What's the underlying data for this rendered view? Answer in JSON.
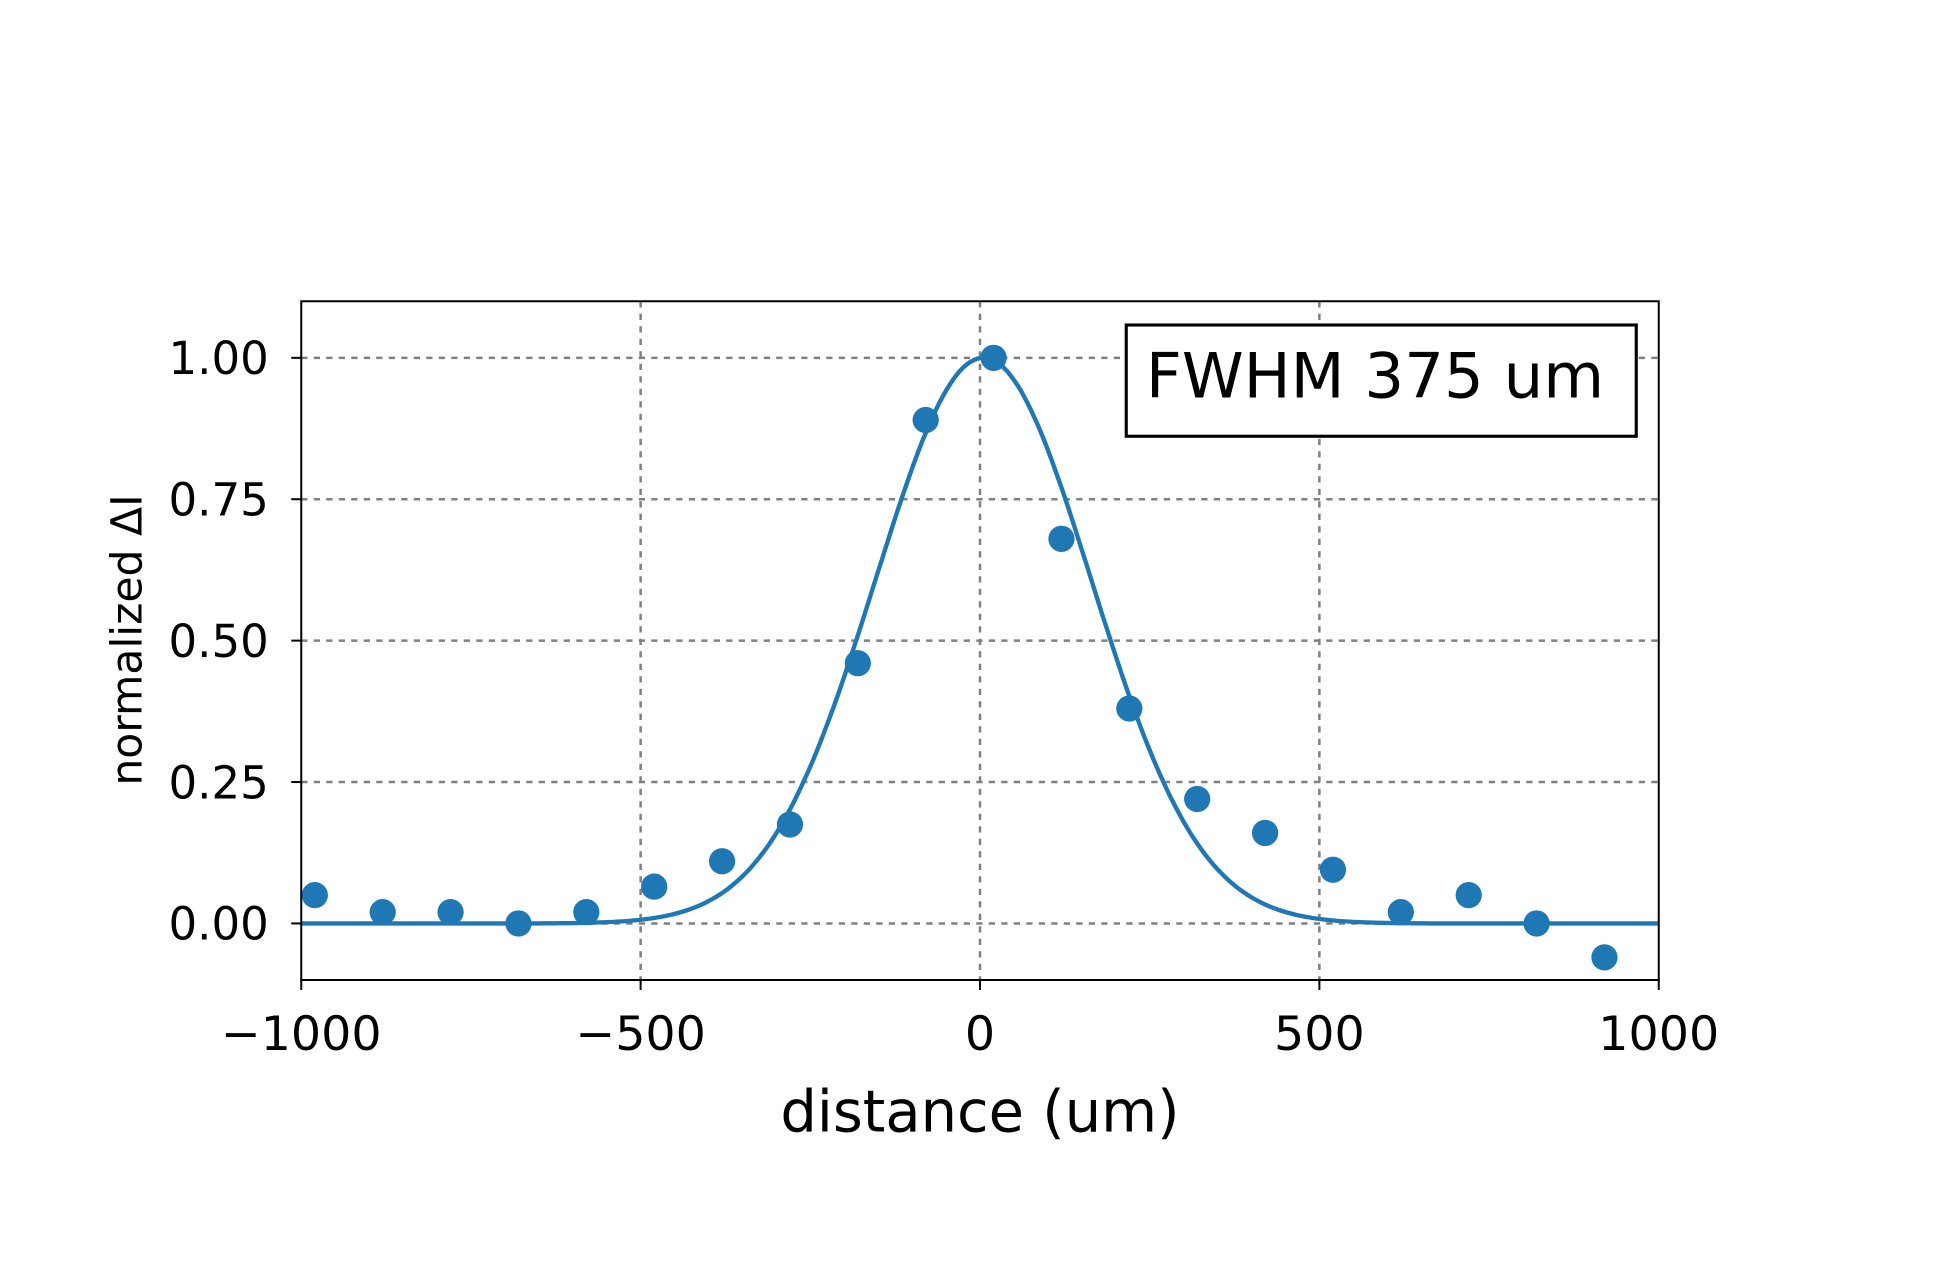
{
  "chart_data": {
    "type": "scatter",
    "title": "",
    "xlabel": "distance (um)",
    "ylabel": "normalized ΔI",
    "xlim": [
      -1000,
      1000
    ],
    "ylim": [
      -0.1,
      1.1
    ],
    "xticks": [
      -1000,
      -500,
      0,
      500,
      1000
    ],
    "xtick_labels": [
      "−1000",
      "−500",
      "0",
      "500",
      "1000"
    ],
    "yticks": [
      0,
      0.25,
      0.5,
      0.75,
      1.0
    ],
    "ytick_labels": [
      "0.00",
      "0.25",
      "0.50",
      "0.75",
      "1.00"
    ],
    "grid": true,
    "annotation": "FWHM 375 um",
    "annotation_placement": "top-right",
    "color": "#1f77b4",
    "series": [
      {
        "type": "scatter",
        "x": [
          -980,
          -880,
          -780,
          -680,
          -580,
          -480,
          -380,
          -280,
          -180,
          -80,
          20,
          120,
          220,
          320,
          420,
          520,
          620,
          720,
          820,
          920
        ],
        "y": [
          0.05,
          0.02,
          0.02,
          0.0,
          0.02,
          0.065,
          0.11,
          0.175,
          0.46,
          0.89,
          1.0,
          0.68,
          0.38,
          0.22,
          0.16,
          0.095,
          0.02,
          0.05,
          0.0,
          -0.06
        ]
      },
      {
        "type": "line",
        "fit": "gaussian",
        "center": 5,
        "fwhm": 375,
        "amplitude": 1.0
      }
    ]
  }
}
